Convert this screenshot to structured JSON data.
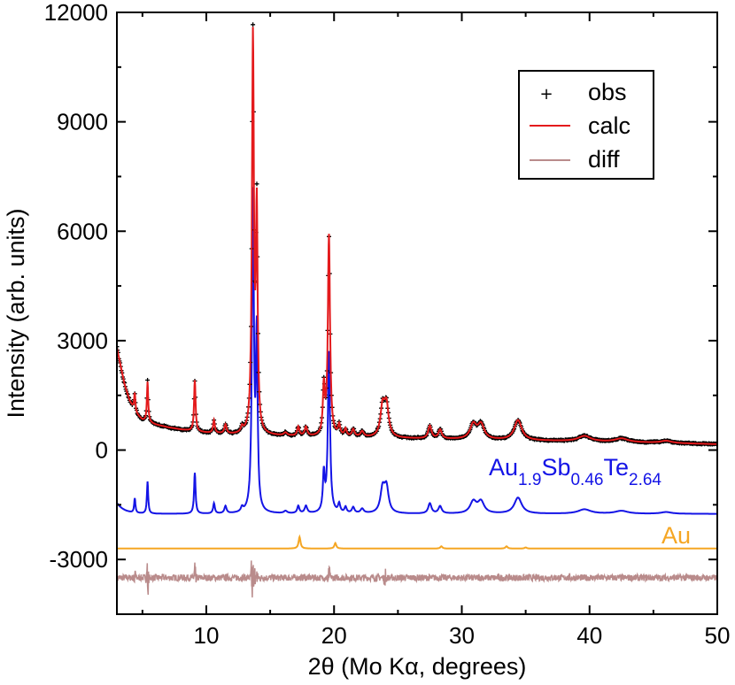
{
  "chart_data": {
    "type": "line",
    "xlabel": "2θ (Mo Kα, degrees)",
    "ylabel": "Intensity (arb. units)",
    "xlim": [
      3,
      50
    ],
    "ylim": [
      -4500,
      12000
    ],
    "x_ticks": [
      10,
      20,
      30,
      40,
      50
    ],
    "y_ticks": [
      -3000,
      0,
      3000,
      6000,
      9000,
      12000
    ],
    "grid": false,
    "legend_position": "top-right",
    "legend": [
      {
        "label": "obs",
        "marker": "plus",
        "color": "#000000"
      },
      {
        "label": "calc",
        "marker": "line",
        "color": "#e41a1c"
      },
      {
        "label": "diff",
        "marker": "line",
        "color": "#b98b8b"
      }
    ],
    "colors": {
      "obs": "#000000",
      "calc": "#e41a1c",
      "diff": "#b98b8b",
      "phase1": "#1414e6",
      "phase2": "#f5a623"
    },
    "background": {
      "x": [
        3.0,
        3.3,
        3.6,
        4.0,
        4.5,
        5.0,
        6.0,
        7.0,
        8.0,
        9.0,
        10.0,
        12.0,
        14.0,
        16.0,
        18.0,
        20.0,
        22.0,
        25.0,
        30.0,
        35.0,
        40.0,
        45.0,
        50.0
      ],
      "y": [
        2800,
        2300,
        1800,
        1350,
        1000,
        820,
        700,
        620,
        560,
        510,
        470,
        420,
        400,
        380,
        360,
        350,
        340,
        320,
        290,
        260,
        230,
        200,
        160
      ]
    },
    "obs_peaks": [
      {
        "x": 4.4,
        "height": 500,
        "width": 0.06
      },
      {
        "x": 5.4,
        "height": 1100,
        "width": 0.06
      },
      {
        "x": 9.1,
        "height": 1400,
        "width": 0.07
      },
      {
        "x": 10.6,
        "height": 350,
        "width": 0.08
      },
      {
        "x": 11.5,
        "height": 250,
        "width": 0.1
      },
      {
        "x": 12.8,
        "height": 150,
        "width": 0.1
      },
      {
        "x": 13.65,
        "height": 10800,
        "width": 0.09
      },
      {
        "x": 13.95,
        "height": 5900,
        "width": 0.08
      },
      {
        "x": 16.2,
        "height": 80,
        "width": 0.15
      },
      {
        "x": 17.2,
        "height": 250,
        "width": 0.1
      },
      {
        "x": 17.8,
        "height": 250,
        "width": 0.12
      },
      {
        "x": 19.2,
        "height": 1300,
        "width": 0.09
      },
      {
        "x": 19.6,
        "height": 5500,
        "width": 0.1
      },
      {
        "x": 20.4,
        "height": 300,
        "width": 0.1
      },
      {
        "x": 20.9,
        "height": 200,
        "width": 0.1
      },
      {
        "x": 21.5,
        "height": 200,
        "width": 0.12
      },
      {
        "x": 22.2,
        "height": 150,
        "width": 0.15
      },
      {
        "x": 23.8,
        "height": 800,
        "width": 0.2
      },
      {
        "x": 24.1,
        "height": 850,
        "width": 0.2
      },
      {
        "x": 27.5,
        "height": 350,
        "width": 0.15
      },
      {
        "x": 28.3,
        "height": 250,
        "width": 0.15
      },
      {
        "x": 30.9,
        "height": 400,
        "width": 0.3
      },
      {
        "x": 31.5,
        "height": 400,
        "width": 0.3
      },
      {
        "x": 34.4,
        "height": 550,
        "width": 0.35
      },
      {
        "x": 39.6,
        "height": 150,
        "width": 0.6
      },
      {
        "x": 42.5,
        "height": 100,
        "width": 0.6
      },
      {
        "x": 46.0,
        "height": 60,
        "width": 0.5
      }
    ],
    "phases": [
      {
        "label_parts": [
          [
            "Au",
            ""
          ],
          [
            "1.9",
            "sub"
          ],
          [
            "Sb",
            ""
          ],
          [
            "0.46",
            "sub"
          ],
          [
            "Te",
            ""
          ],
          [
            "2.64",
            "sub"
          ]
        ],
        "color": "#1414e6",
        "offset": -1750,
        "scale": 0.8,
        "base_decay": 300
      },
      {
        "label_parts": [
          [
            "Au",
            ""
          ]
        ],
        "color": "#f5a623",
        "offset": -2700,
        "peaks": [
          {
            "x": 17.3,
            "height": 320,
            "width": 0.09
          },
          {
            "x": 20.1,
            "height": 150,
            "width": 0.09
          },
          {
            "x": 28.4,
            "height": 60,
            "width": 0.1
          },
          {
            "x": 33.5,
            "height": 60,
            "width": 0.1
          },
          {
            "x": 35.0,
            "height": 30,
            "width": 0.1
          }
        ]
      }
    ],
    "diff": {
      "offset": -3500,
      "noise": 90,
      "spikes": [
        {
          "x": 4.4,
          "amp": 350
        },
        {
          "x": 5.4,
          "amp": 700
        },
        {
          "x": 9.1,
          "amp": 500
        },
        {
          "x": 13.6,
          "amp": 900
        },
        {
          "x": 13.9,
          "amp": 800
        },
        {
          "x": 19.6,
          "amp": 400
        },
        {
          "x": 24.0,
          "amp": 300
        }
      ]
    }
  },
  "legend_labels": {
    "obs": "obs",
    "calc": "calc",
    "diff": "diff"
  },
  "axes": {
    "x_tick_labels": [
      "10",
      "20",
      "30",
      "40",
      "50"
    ],
    "y_tick_labels": [
      "-3000",
      "0",
      "3000",
      "6000",
      "9000",
      "12000"
    ]
  }
}
